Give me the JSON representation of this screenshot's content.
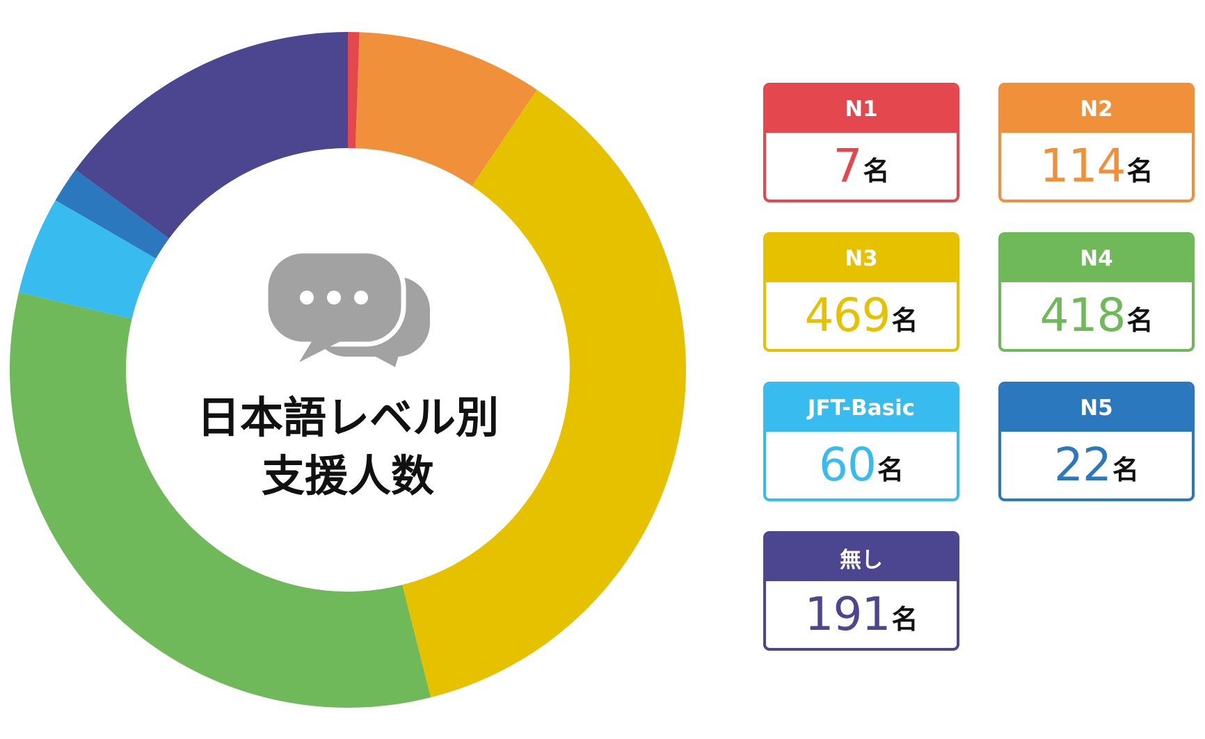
{
  "chart_data": {
    "type": "pie",
    "title": "日本語レベル別\n支援人数",
    "title_lines": [
      "日本語レベル別",
      "支援人数"
    ],
    "center_icon": "speech-bubbles-icon",
    "categories": [
      "N1",
      "N2",
      "N3",
      "N4",
      "JFT-Basic",
      "N5",
      "無し"
    ],
    "values": [
      7,
      114,
      469,
      418,
      60,
      22,
      191
    ],
    "unit": "名",
    "colors": [
      "#e5474f",
      "#f0903b",
      "#e5c100",
      "#6fb95a",
      "#38bbee",
      "#2b78be",
      "#4c4590"
    ],
    "legend_placement": "right"
  },
  "legend_cards": [
    {
      "label": "N1",
      "value": "7",
      "unit": "名",
      "color": "#e5474f"
    },
    {
      "label": "N2",
      "value": "114",
      "unit": "名",
      "color": "#f0903b"
    },
    {
      "label": "N3",
      "value": "469",
      "unit": "名",
      "color": "#e5c100"
    },
    {
      "label": "N4",
      "value": "418",
      "unit": "名",
      "color": "#6fb95a"
    },
    {
      "label": "JFT-Basic",
      "value": "60",
      "unit": "名",
      "color": "#38bbee"
    },
    {
      "label": "N5",
      "value": "22",
      "unit": "名",
      "color": "#2b78be"
    },
    {
      "label": "無し",
      "value": "191",
      "unit": "名",
      "color": "#4c4590"
    }
  ]
}
